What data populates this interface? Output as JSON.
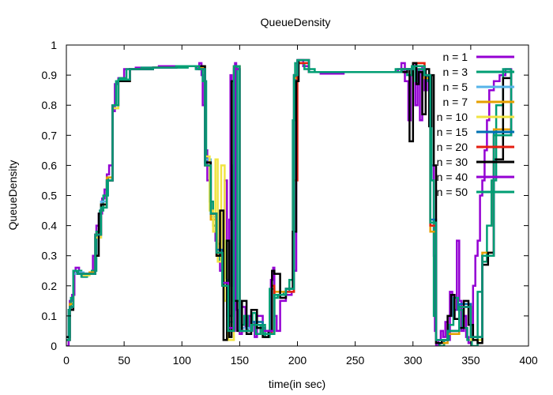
{
  "chart_data": {
    "type": "line",
    "title": "QueueDensity",
    "xlabel": "time(in sec)",
    "ylabel": "QueueDensity",
    "xlim": [
      0,
      400
    ],
    "ylim": [
      0,
      1
    ],
    "x_ticks": [
      "0",
      "50",
      "100",
      "150",
      "200",
      "250",
      "300",
      "350",
      "400"
    ],
    "y_ticks": [
      "0",
      "0.1",
      "0.2",
      "0.3",
      "0.4",
      "0.5",
      "0.6",
      "0.7",
      "0.8",
      "0.9",
      "1"
    ],
    "grid": false,
    "legend_position": "top-right",
    "series": [
      {
        "name": "n = 1",
        "color": "#9400d3",
        "x": [
          0,
          2,
          3,
          5,
          7,
          8,
          11,
          14,
          17,
          20,
          23,
          26,
          28,
          31,
          33,
          35,
          37,
          40,
          42,
          44,
          45,
          50,
          60,
          80,
          100,
          110,
          113,
          115,
          117,
          118,
          120,
          122,
          125,
          127,
          129,
          131,
          133,
          135,
          137,
          139,
          140,
          141,
          142,
          143,
          144,
          145,
          146,
          147,
          149,
          150,
          152,
          155,
          158,
          160,
          163,
          165,
          170,
          172,
          175,
          177,
          179,
          180,
          182,
          185,
          190,
          195,
          197,
          199,
          200,
          205,
          210,
          220,
          240,
          260,
          280,
          287,
          290,
          293,
          296,
          298,
          300,
          302,
          304,
          306,
          308,
          310,
          312,
          314,
          316,
          318,
          319,
          320,
          322,
          324,
          326,
          328,
          330,
          332,
          334,
          336,
          338,
          340,
          342,
          344,
          346,
          348,
          350,
          352,
          354,
          356,
          358,
          360,
          362,
          364,
          366,
          370,
          375,
          380,
          385
        ],
        "y": [
          0,
          0.12,
          0.15,
          0.17,
          0.25,
          0.26,
          0.24,
          0.23,
          0.24,
          0.24,
          0.3,
          0.4,
          0.44,
          0.49,
          0.52,
          0.57,
          0.6,
          0.78,
          0.87,
          0.88,
          0.89,
          0.92,
          0.925,
          0.93,
          0.93,
          0.93,
          0.92,
          0.94,
          0.9,
          0.8,
          0.65,
          0.55,
          0.45,
          0.4,
          0.35,
          0.3,
          0.25,
          0.2,
          0.55,
          0.1,
          0.05,
          0.42,
          0.9,
          0.2,
          0.6,
          0.05,
          0.94,
          0.12,
          0.05,
          0.04,
          0.13,
          0.06,
          0.1,
          0.08,
          0.03,
          0.1,
          0.06,
          0.05,
          0.04,
          0.22,
          0.26,
          0.1,
          0.05,
          0.15,
          0.17,
          0.18,
          0.25,
          0.9,
          0.95,
          0.93,
          0.91,
          0.905,
          0.91,
          0.91,
          0.91,
          0.92,
          0.94,
          0.88,
          0.75,
          0.9,
          0.94,
          0.8,
          0.92,
          0.75,
          0.93,
          0.85,
          0.9,
          0.88,
          0.6,
          0.3,
          0.05,
          0,
          0.02,
          0.05,
          0.03,
          0.08,
          0.02,
          0.18,
          0.1,
          0.12,
          0.35,
          0.15,
          0.05,
          0.1,
          0.03,
          0.01,
          0.02,
          0.2,
          0.3,
          0.35,
          0.5,
          0.55,
          0.65,
          0.75,
          0.85,
          0.88,
          0.9,
          0.92,
          0.91
        ]
      },
      {
        "name": "n = 3",
        "color": "#009e73",
        "x": [
          0,
          2,
          4,
          6,
          9,
          13,
          18,
          22,
          26,
          29,
          32,
          36,
          40,
          43,
          46,
          52,
          65,
          85,
          105,
          112,
          116,
          118,
          121,
          124,
          127,
          130,
          133,
          136,
          138,
          141,
          143,
          145,
          148,
          151,
          154,
          157,
          161,
          164,
          168,
          172,
          176,
          180,
          183,
          188,
          193,
          196,
          198,
          200,
          206,
          215,
          230,
          250,
          270,
          285,
          291,
          295,
          299,
          302,
          305,
          309,
          313,
          316,
          318,
          320,
          323,
          327,
          331,
          335,
          339,
          343,
          347,
          351,
          356,
          360,
          364,
          368,
          372,
          378,
          385
        ],
        "y": [
          0.02,
          0.12,
          0.16,
          0.24,
          0.25,
          0.23,
          0.24,
          0.25,
          0.38,
          0.45,
          0.5,
          0.56,
          0.8,
          0.88,
          0.89,
          0.92,
          0.925,
          0.925,
          0.93,
          0.92,
          0.93,
          0.88,
          0.6,
          0.48,
          0.4,
          0.34,
          0.28,
          0.22,
          0.35,
          0.1,
          0.55,
          0.93,
          0.15,
          0.07,
          0.1,
          0.05,
          0.11,
          0.04,
          0.07,
          0.03,
          0.19,
          0.16,
          0.17,
          0.18,
          0.22,
          0.75,
          0.94,
          0.94,
          0.92,
          0.91,
          0.91,
          0.91,
          0.91,
          0.92,
          0.91,
          0.9,
          0.93,
          0.88,
          0.92,
          0.9,
          0.88,
          0.55,
          0.1,
          0.01,
          0.0,
          0.02,
          0.07,
          0.16,
          0.12,
          0.06,
          0.02,
          0.0,
          0.18,
          0.28,
          0.4,
          0.55,
          0.8,
          0.92,
          0.92
        ]
      },
      {
        "name": "n = 5",
        "color": "#56b4e9",
        "x": [
          0,
          3,
          6,
          10,
          15,
          20,
          25,
          30,
          35,
          40,
          45,
          55,
          75,
          95,
          110,
          115,
          120,
          125,
          130,
          135,
          140,
          145,
          150,
          160,
          170,
          180,
          190,
          197,
          200,
          210,
          240,
          270,
          290,
          300,
          310,
          315,
          320,
          330,
          340,
          350,
          360,
          370,
          385
        ],
        "y": [
          0.03,
          0.13,
          0.24,
          0.245,
          0.235,
          0.24,
          0.36,
          0.48,
          0.55,
          0.79,
          0.88,
          0.92,
          0.925,
          0.93,
          0.93,
          0.93,
          0.62,
          0.43,
          0.31,
          0.22,
          0.08,
          0.92,
          0.06,
          0.07,
          0.05,
          0.17,
          0.19,
          0.9,
          0.94,
          0.91,
          0.91,
          0.91,
          0.92,
          0.93,
          0.9,
          0.4,
          0.02,
          0.05,
          0.13,
          0.02,
          0.3,
          0.7,
          0.92
        ]
      },
      {
        "name": "n = 7",
        "color": "#e69f00",
        "x": [
          0,
          3,
          6,
          10,
          15,
          20,
          25,
          30,
          35,
          40,
          45,
          55,
          75,
          95,
          110,
          115,
          120,
          125,
          130,
          135,
          140,
          145,
          150,
          160,
          170,
          180,
          190,
          197,
          200,
          210,
          240,
          270,
          290,
          300,
          310,
          315,
          320,
          330,
          340,
          350,
          360,
          370,
          385
        ],
        "y": [
          0.02,
          0.14,
          0.25,
          0.24,
          0.24,
          0.245,
          0.37,
          0.47,
          0.56,
          0.8,
          0.885,
          0.92,
          0.925,
          0.93,
          0.93,
          0.925,
          0.6,
          0.42,
          0.3,
          0.2,
          0.05,
          0.93,
          0.05,
          0.08,
          0.04,
          0.18,
          0.19,
          0.89,
          0.95,
          0.91,
          0.91,
          0.91,
          0.92,
          0.94,
          0.89,
          0.38,
          0.01,
          0.04,
          0.14,
          0.03,
          0.31,
          0.72,
          0.92
        ]
      },
      {
        "name": "n = 10",
        "color": "#f0e442",
        "x": [
          0,
          3,
          6,
          10,
          15,
          20,
          25,
          30,
          35,
          40,
          45,
          55,
          75,
          95,
          110,
          115,
          120,
          124,
          127,
          129,
          131,
          134,
          137,
          140,
          145,
          150,
          160,
          170,
          180,
          190,
          197,
          200,
          210,
          240,
          270,
          290,
          300,
          310,
          315,
          320,
          330,
          340,
          350,
          360,
          370,
          385
        ],
        "y": [
          0.02,
          0.13,
          0.25,
          0.24,
          0.235,
          0.24,
          0.36,
          0.47,
          0.55,
          0.79,
          0.88,
          0.92,
          0.925,
          0.93,
          0.93,
          0.93,
          0.63,
          0.45,
          0.38,
          0.62,
          0.28,
          0.6,
          0.15,
          0.02,
          0.92,
          0.05,
          0.07,
          0.05,
          0.17,
          0.18,
          0.9,
          0.94,
          0.91,
          0.91,
          0.91,
          0.92,
          0.93,
          0.9,
          0.4,
          0.02,
          0.05,
          0.13,
          0.02,
          0.3,
          0.7,
          0.92
        ]
      },
      {
        "name": "n = 15",
        "color": "#0072b2",
        "x": [
          0,
          3,
          6,
          10,
          15,
          20,
          25,
          30,
          35,
          40,
          45,
          55,
          75,
          95,
          110,
          115,
          120,
          125,
          130,
          135,
          140,
          145,
          150,
          160,
          170,
          180,
          190,
          197,
          200,
          210,
          240,
          270,
          290,
          300,
          310,
          315,
          320,
          330,
          340,
          350,
          360,
          370,
          385
        ],
        "y": [
          0.02,
          0.13,
          0.25,
          0.24,
          0.24,
          0.24,
          0.37,
          0.46,
          0.55,
          0.8,
          0.885,
          0.92,
          0.925,
          0.93,
          0.93,
          0.92,
          0.61,
          0.44,
          0.32,
          0.21,
          0.06,
          0.92,
          0.05,
          0.08,
          0.05,
          0.17,
          0.19,
          0.9,
          0.95,
          0.91,
          0.91,
          0.91,
          0.92,
          0.93,
          0.9,
          0.42,
          0.02,
          0.05,
          0.14,
          0.03,
          0.3,
          0.71,
          0.92
        ]
      },
      {
        "name": "n = 20",
        "color": "#e51e10",
        "x": [
          0,
          3,
          6,
          10,
          15,
          20,
          25,
          30,
          35,
          40,
          45,
          55,
          75,
          95,
          110,
          115,
          120,
          125,
          130,
          135,
          140,
          145,
          150,
          160,
          170,
          178,
          180,
          190,
          197,
          200,
          210,
          240,
          270,
          290,
          300,
          310,
          315,
          320,
          330,
          340,
          350,
          360,
          370,
          385
        ],
        "y": [
          0.02,
          0.13,
          0.25,
          0.24,
          0.24,
          0.24,
          0.37,
          0.46,
          0.55,
          0.8,
          0.88,
          0.92,
          0.925,
          0.93,
          0.93,
          0.92,
          0.6,
          0.44,
          0.3,
          0.2,
          0.05,
          0.93,
          0.05,
          0.07,
          0.04,
          0.2,
          0.17,
          0.18,
          0.55,
          0.94,
          0.91,
          0.91,
          0.91,
          0.92,
          0.94,
          0.9,
          0.4,
          0.02,
          0.05,
          0.13,
          0.03,
          0.3,
          0.7,
          0.92
        ]
      },
      {
        "name": "n = 30",
        "color": "#000000",
        "x": [
          0,
          3,
          6,
          10,
          15,
          20,
          25,
          28,
          30,
          35,
          40,
          45,
          55,
          75,
          95,
          110,
          115,
          120,
          125,
          130,
          133,
          136,
          139,
          141,
          143,
          145,
          148,
          152,
          156,
          160,
          165,
          170,
          175,
          178,
          180,
          185,
          190,
          196,
          199,
          201,
          210,
          240,
          270,
          290,
          295,
          297,
          300,
          303,
          305,
          308,
          311,
          314,
          316,
          318,
          320,
          325,
          330,
          333,
          336,
          340,
          344,
          348,
          352,
          356,
          360,
          365,
          370,
          378,
          385
        ],
        "y": [
          0.03,
          0.12,
          0.25,
          0.24,
          0.24,
          0.24,
          0.3,
          0.44,
          0.47,
          0.55,
          0.8,
          0.88,
          0.92,
          0.925,
          0.93,
          0.93,
          0.93,
          0.61,
          0.44,
          0.3,
          0.45,
          0.02,
          0.35,
          0.03,
          0.88,
          0.15,
          0.05,
          0.15,
          0.04,
          0.12,
          0.06,
          0.03,
          0.05,
          0.25,
          0.24,
          0.16,
          0.19,
          0.38,
          0.88,
          0.95,
          0.91,
          0.91,
          0.91,
          0.91,
          0.92,
          0.68,
          0.94,
          0.87,
          0.91,
          0.77,
          0.92,
          0.73,
          0.9,
          0.6,
          0.01,
          0.02,
          0.1,
          0.17,
          0.09,
          0.06,
          0.15,
          0.07,
          0.02,
          0.01,
          0.27,
          0.31,
          0.62,
          0.89,
          0.92
        ]
      },
      {
        "name": "n = 40",
        "color": "#9400d3",
        "x": [
          0,
          3,
          6,
          10,
          15,
          20,
          25,
          30,
          35,
          40,
          45,
          55,
          75,
          95,
          110,
          115,
          120,
          125,
          130,
          135,
          140,
          145,
          150,
          160,
          170,
          180,
          190,
          197,
          200,
          210,
          240,
          270,
          290,
          300,
          310,
          315,
          320,
          330,
          340,
          350,
          360,
          370,
          385
        ],
        "y": [
          0.02,
          0.13,
          0.25,
          0.24,
          0.24,
          0.24,
          0.37,
          0.46,
          0.55,
          0.8,
          0.885,
          0.92,
          0.925,
          0.93,
          0.93,
          0.92,
          0.6,
          0.44,
          0.31,
          0.21,
          0.06,
          0.92,
          0.05,
          0.07,
          0.05,
          0.17,
          0.19,
          0.9,
          0.95,
          0.91,
          0.91,
          0.91,
          0.92,
          0.93,
          0.9,
          0.41,
          0.02,
          0.05,
          0.13,
          0.03,
          0.3,
          0.7,
          0.92
        ]
      },
      {
        "name": "n = 50",
        "color": "#009e73",
        "x": [
          0,
          3,
          6,
          10,
          15,
          20,
          25,
          30,
          35,
          40,
          45,
          55,
          75,
          95,
          110,
          115,
          120,
          125,
          130,
          135,
          140,
          145,
          150,
          160,
          170,
          180,
          190,
          197,
          200,
          210,
          240,
          270,
          290,
          300,
          310,
          315,
          320,
          330,
          340,
          350,
          360,
          370,
          385
        ],
        "y": [
          0.02,
          0.13,
          0.25,
          0.24,
          0.24,
          0.24,
          0.37,
          0.46,
          0.55,
          0.8,
          0.885,
          0.92,
          0.925,
          0.93,
          0.93,
          0.92,
          0.6,
          0.44,
          0.31,
          0.2,
          0.05,
          0.93,
          0.05,
          0.07,
          0.04,
          0.17,
          0.19,
          0.9,
          0.95,
          0.91,
          0.91,
          0.91,
          0.92,
          0.93,
          0.9,
          0.41,
          0.02,
          0.05,
          0.13,
          0.03,
          0.3,
          0.7,
          0.92
        ]
      }
    ]
  }
}
